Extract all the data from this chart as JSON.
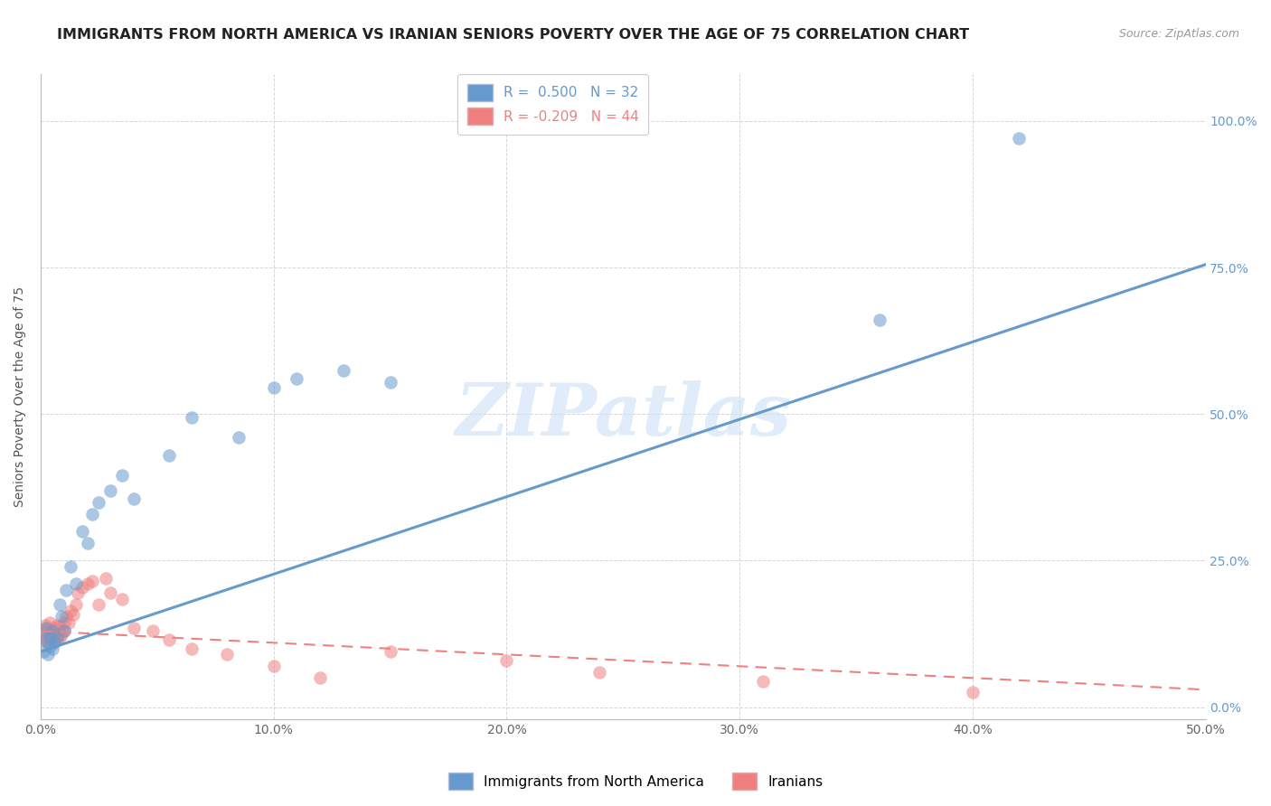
{
  "title": "IMMIGRANTS FROM NORTH AMERICA VS IRANIAN SENIORS POVERTY OVER THE AGE OF 75 CORRELATION CHART",
  "source_text": "Source: ZipAtlas.com",
  "ylabel": "Seniors Poverty Over the Age of 75",
  "watermark": "ZIPatlas",
  "xlim": [
    0.0,
    0.5
  ],
  "ylim": [
    -0.02,
    1.08
  ],
  "x_ticks": [
    0.0,
    0.1,
    0.2,
    0.3,
    0.4,
    0.5
  ],
  "x_tick_labels": [
    "0.0%",
    "10.0%",
    "20.0%",
    "30.0%",
    "40.0%",
    "50.0%"
  ],
  "y_ticks": [
    0.0,
    0.25,
    0.5,
    0.75,
    1.0
  ],
  "y_tick_labels_right": [
    "0.0%",
    "25.0%",
    "50.0%",
    "75.0%",
    "100.0%"
  ],
  "blue_color": "#6699CC",
  "pink_color": "#F08080",
  "legend_blue_label": "Immigrants from North America",
  "legend_pink_label": "Iranians",
  "r_blue": 0.5,
  "n_blue": 32,
  "r_pink": -0.209,
  "n_pink": 44,
  "blue_scatter_x": [
    0.001,
    0.002,
    0.002,
    0.003,
    0.004,
    0.004,
    0.005,
    0.005,
    0.006,
    0.007,
    0.008,
    0.009,
    0.01,
    0.011,
    0.013,
    0.015,
    0.018,
    0.02,
    0.022,
    0.025,
    0.03,
    0.035,
    0.04,
    0.055,
    0.065,
    0.085,
    0.1,
    0.11,
    0.13,
    0.15,
    0.36,
    0.42
  ],
  "blue_scatter_y": [
    0.095,
    0.115,
    0.135,
    0.09,
    0.105,
    0.12,
    0.1,
    0.13,
    0.11,
    0.115,
    0.175,
    0.155,
    0.13,
    0.2,
    0.24,
    0.21,
    0.3,
    0.28,
    0.33,
    0.35,
    0.37,
    0.395,
    0.355,
    0.43,
    0.495,
    0.46,
    0.545,
    0.56,
    0.575,
    0.555,
    0.66,
    0.97
  ],
  "pink_scatter_x": [
    0.001,
    0.001,
    0.002,
    0.002,
    0.003,
    0.003,
    0.004,
    0.004,
    0.005,
    0.005,
    0.006,
    0.006,
    0.007,
    0.007,
    0.008,
    0.008,
    0.009,
    0.01,
    0.01,
    0.011,
    0.012,
    0.013,
    0.014,
    0.015,
    0.016,
    0.018,
    0.02,
    0.022,
    0.025,
    0.028,
    0.03,
    0.035,
    0.04,
    0.048,
    0.055,
    0.065,
    0.08,
    0.1,
    0.12,
    0.15,
    0.2,
    0.24,
    0.31,
    0.4
  ],
  "pink_scatter_y": [
    0.115,
    0.13,
    0.12,
    0.14,
    0.11,
    0.135,
    0.125,
    0.145,
    0.118,
    0.128,
    0.115,
    0.135,
    0.122,
    0.14,
    0.118,
    0.138,
    0.125,
    0.13,
    0.145,
    0.155,
    0.145,
    0.165,
    0.158,
    0.175,
    0.195,
    0.205,
    0.21,
    0.215,
    0.175,
    0.22,
    0.195,
    0.185,
    0.135,
    0.13,
    0.115,
    0.1,
    0.09,
    0.07,
    0.05,
    0.095,
    0.08,
    0.06,
    0.045,
    0.025
  ],
  "background_color": "#FFFFFF",
  "grid_color": "#CCCCCC",
  "title_fontsize": 11.5,
  "axis_label_fontsize": 10,
  "tick_fontsize": 10,
  "source_fontsize": 9
}
